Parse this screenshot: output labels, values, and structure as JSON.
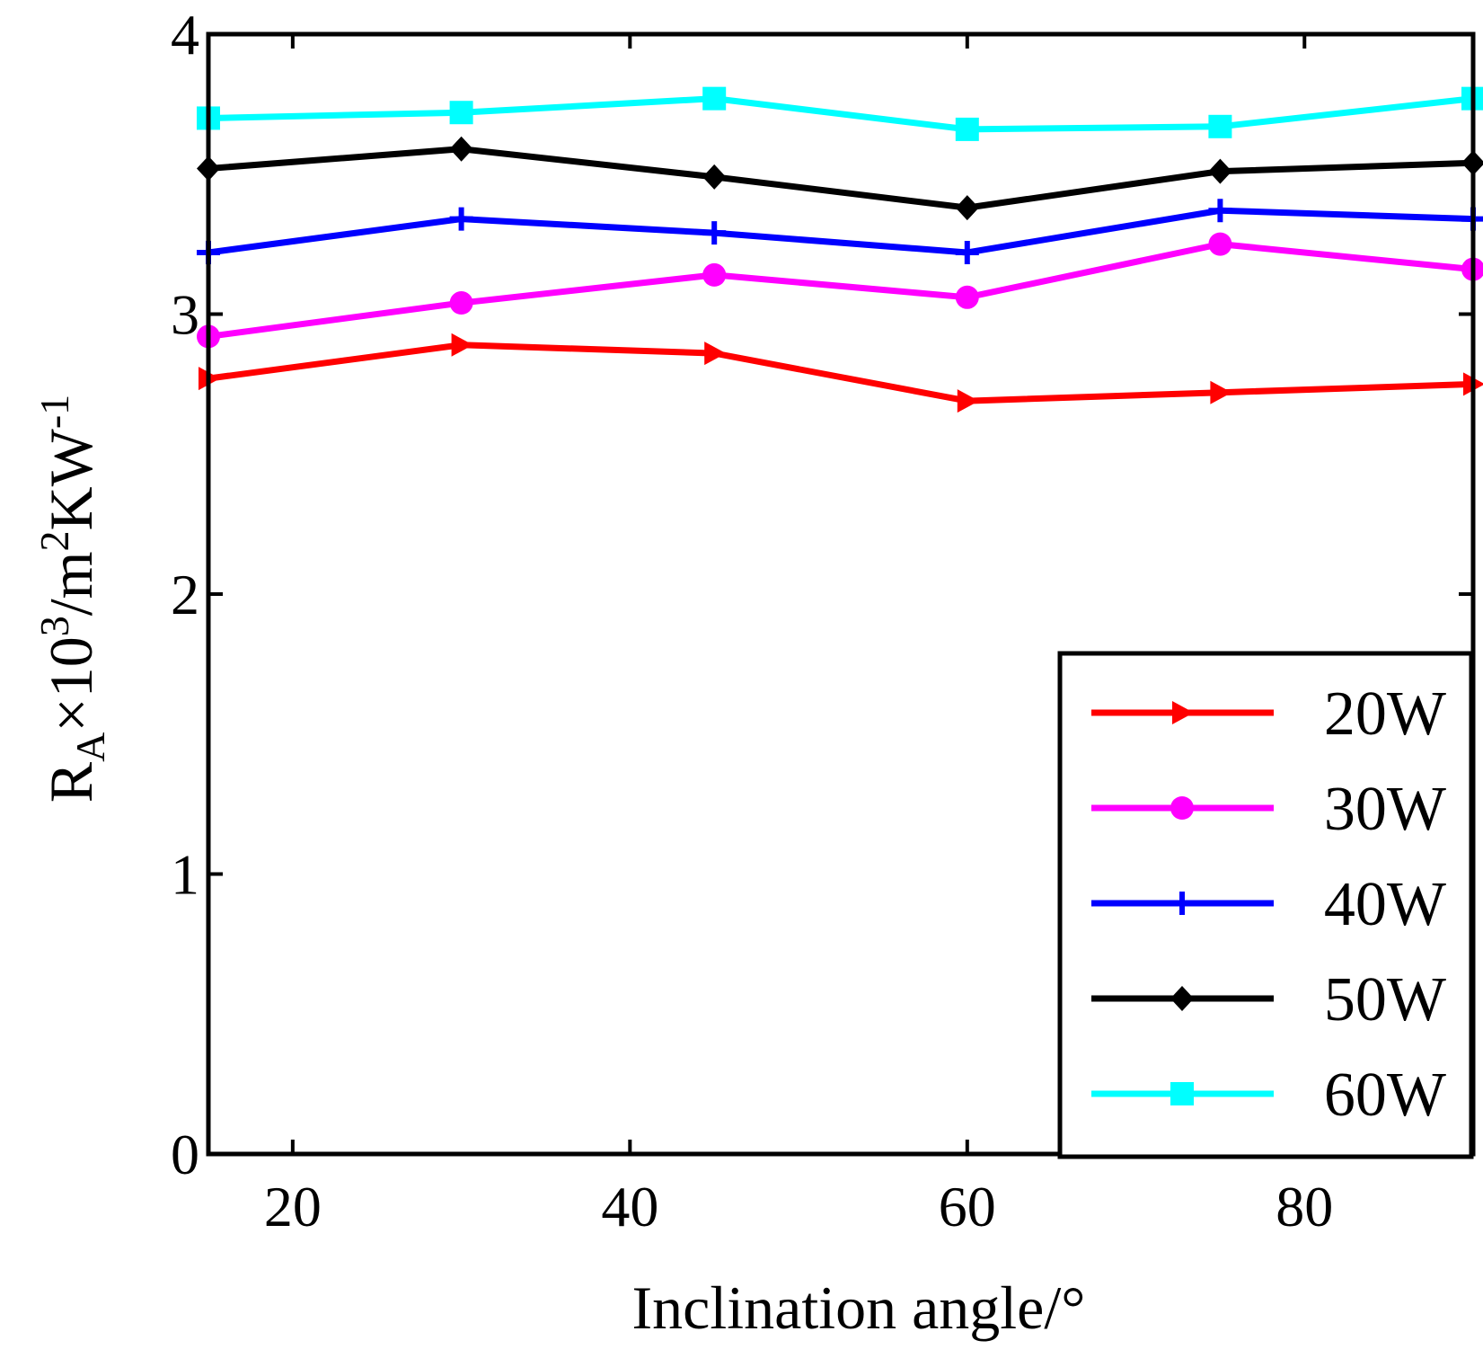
{
  "chart_data": {
    "type": "line",
    "title": "",
    "xlabel": "Inclination angle/°",
    "ylabel": {
      "base": "R",
      "sub": "A",
      "mid": "×10",
      "sup1": "3",
      "unit": "/m",
      "sup2": "2",
      "tail": "KW",
      "sup3": "-1"
    },
    "xlim": [
      15,
      90
    ],
    "ylim": [
      0,
      4
    ],
    "xticks": [
      20,
      40,
      60,
      80
    ],
    "yticks": [
      0,
      1,
      2,
      3,
      4
    ],
    "x": [
      15,
      30,
      45,
      60,
      75,
      90
    ],
    "legend_position": "bottom-right",
    "series": [
      {
        "name": "20W",
        "color": "#ff0000",
        "marker": "triangle-right",
        "values": [
          2.77,
          2.89,
          2.86,
          2.69,
          2.72,
          2.75
        ]
      },
      {
        "name": "30W",
        "color": "#ff00ff",
        "marker": "circle",
        "values": [
          2.92,
          3.04,
          3.14,
          3.06,
          3.25,
          3.16
        ]
      },
      {
        "name": "40W",
        "color": "#0000ff",
        "marker": "plus",
        "values": [
          3.22,
          3.34,
          3.29,
          3.22,
          3.37,
          3.34
        ]
      },
      {
        "name": "50W",
        "color": "#000000",
        "marker": "diamond",
        "values": [
          3.52,
          3.59,
          3.49,
          3.38,
          3.51,
          3.54
        ]
      },
      {
        "name": "60W",
        "color": "#00ffff",
        "marker": "square",
        "values": [
          3.7,
          3.72,
          3.77,
          3.66,
          3.67,
          3.77
        ]
      }
    ]
  }
}
